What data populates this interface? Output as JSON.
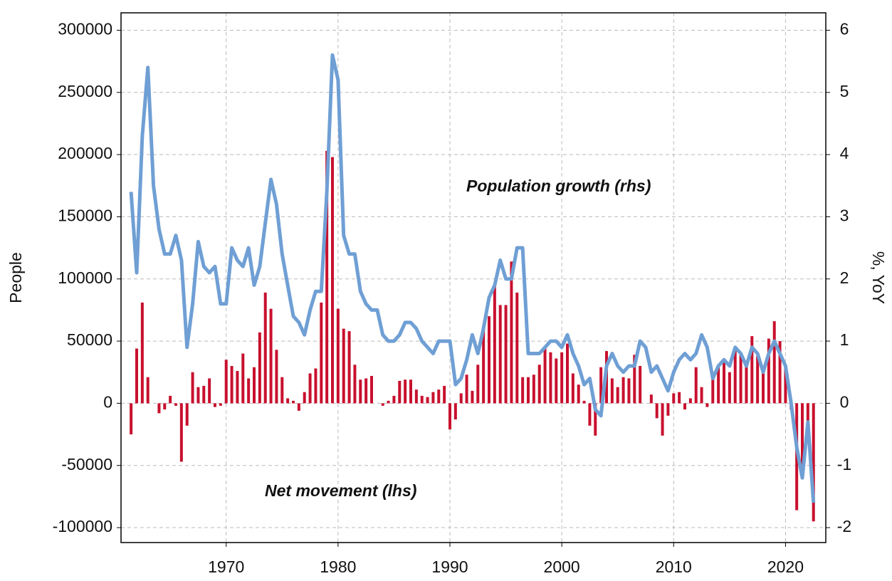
{
  "chart_data": {
    "type": "bar_line",
    "ylabel": "People",
    "y2label": "%, YoY",
    "annotations": [
      "Population growth (rhs)",
      "Net movement (lhs)"
    ],
    "x": [
      1961.5,
      1962,
      1962.5,
      1963,
      1963.5,
      1964,
      1964.5,
      1965,
      1965.5,
      1966,
      1966.5,
      1967,
      1967.5,
      1968,
      1968.5,
      1969,
      1969.5,
      1970,
      1970.5,
      1971,
      1971.5,
      1972,
      1972.5,
      1973,
      1973.5,
      1974,
      1974.5,
      1975,
      1975.5,
      1976,
      1976.5,
      1977,
      1977.5,
      1978,
      1978.5,
      1979,
      1979.5,
      1980,
      1980.5,
      1981,
      1981.5,
      1982,
      1982.5,
      1983,
      1983.5,
      1984,
      1984.5,
      1985,
      1985.5,
      1986,
      1986.5,
      1987,
      1987.5,
      1988,
      1988.5,
      1989,
      1989.5,
      1990,
      1990.5,
      1991,
      1991.5,
      1992,
      1992.5,
      1993,
      1993.5,
      1994,
      1994.5,
      1995,
      1995.5,
      1996,
      1996.5,
      1997,
      1997.5,
      1998,
      1998.5,
      1999,
      1999.5,
      2000,
      2000.5,
      2001,
      2001.5,
      2002,
      2002.5,
      2003,
      2003.5,
      2004,
      2004.5,
      2005,
      2005.5,
      2006,
      2006.5,
      2007,
      2007.5,
      2008,
      2008.5,
      2009,
      2009.5,
      2010,
      2010.5,
      2011,
      2011.5,
      2012,
      2012.5,
      2013,
      2013.5,
      2014,
      2014.5,
      2015,
      2015.5,
      2016,
      2016.5,
      2017,
      2017.5,
      2018,
      2018.5,
      2019,
      2019.5,
      2020,
      2020.5,
      2021,
      2021.5,
      2022,
      2022.5
    ],
    "series": [
      {
        "name": "Net movement (lhs)",
        "kind": "bar",
        "color": "#c8102e",
        "values": [
          -25000,
          44000,
          81000,
          21000,
          0,
          -8000,
          -5000,
          6000,
          -2000,
          -47000,
          -18000,
          25000,
          13000,
          14000,
          20000,
          -3000,
          -2000,
          35000,
          30000,
          26000,
          40000,
          20000,
          29000,
          57000,
          89000,
          76000,
          43000,
          21000,
          4000,
          2000,
          -6000,
          9000,
          24000,
          28000,
          81000,
          203000,
          198000,
          76000,
          60000,
          58000,
          31000,
          19000,
          20000,
          22000,
          0,
          -2000,
          2000,
          6000,
          18000,
          19000,
          19000,
          11000,
          6000,
          5000,
          9000,
          11000,
          14000,
          -21000,
          -13000,
          8000,
          23000,
          10000,
          31000,
          59000,
          70000,
          94000,
          79000,
          79000,
          114000,
          89000,
          21000,
          21000,
          23000,
          31000,
          46000,
          41000,
          36000,
          41000,
          48000,
          24000,
          15000,
          2000,
          -18000,
          -26000,
          29000,
          42000,
          20000,
          13000,
          21000,
          20000,
          39000,
          30000,
          0,
          7000,
          -12000,
          -26000,
          -10000,
          8000,
          9000,
          -5000,
          4000,
          29000,
          13000,
          -3000,
          24000,
          31000,
          36000,
          25000,
          42000,
          40000,
          30000,
          54000,
          38000,
          25000,
          52000,
          66000,
          50000,
          28000,
          -5000,
          -86000,
          -55000,
          -28000,
          -95000
        ]
      },
      {
        "name": "Population growth (rhs)",
        "kind": "line",
        "axis": "y2",
        "color": "#6f9fd4",
        "values": [
          3.4,
          2.1,
          4.3,
          5.4,
          3.5,
          2.8,
          2.4,
          2.4,
          2.7,
          2.3,
          0.9,
          1.6,
          2.6,
          2.2,
          2.1,
          2.2,
          1.6,
          1.6,
          2.5,
          2.3,
          2.2,
          2.5,
          1.9,
          2.2,
          2.9,
          3.6,
          3.2,
          2.4,
          1.9,
          1.4,
          1.3,
          1.1,
          1.5,
          1.8,
          1.8,
          3.4,
          5.6,
          5.2,
          2.7,
          2.4,
          2.4,
          1.8,
          1.6,
          1.5,
          1.5,
          1.1,
          1.0,
          1.0,
          1.1,
          1.3,
          1.3,
          1.2,
          1.0,
          0.9,
          0.8,
          1.0,
          1.0,
          1.0,
          0.3,
          0.4,
          0.7,
          1.1,
          0.8,
          1.2,
          1.7,
          1.9,
          2.3,
          2.0,
          2.0,
          2.5,
          2.5,
          0.8,
          0.8,
          0.8,
          0.9,
          1.0,
          1.0,
          0.9,
          1.1,
          0.8,
          0.6,
          0.3,
          0.4,
          -0.1,
          -0.2,
          0.6,
          0.8,
          0.6,
          0.5,
          0.6,
          0.6,
          1.0,
          0.9,
          0.5,
          0.6,
          0.4,
          0.2,
          0.5,
          0.7,
          0.8,
          0.7,
          0.8,
          1.1,
          0.9,
          0.4,
          0.6,
          0.7,
          0.6,
          0.9,
          0.8,
          0.6,
          0.9,
          0.8,
          0.5,
          0.8,
          1.0,
          0.8,
          0.6,
          0.0,
          -0.7,
          -1.2,
          -0.3,
          -1.6
        ]
      }
    ],
    "xlim": [
      1960.6,
      2023.6
    ],
    "xticks": [
      1970,
      1980,
      1990,
      2000,
      2010,
      2020
    ],
    "ylim": [
      -112000,
      314000
    ],
    "yticks": [
      -100000,
      -50000,
      0,
      50000,
      100000,
      150000,
      200000,
      250000,
      300000
    ],
    "y2lim": [
      -2.24,
      6.28
    ],
    "y2ticks": [
      -2,
      -1,
      0,
      1,
      2,
      3,
      4,
      5,
      6
    ],
    "grid": true
  }
}
